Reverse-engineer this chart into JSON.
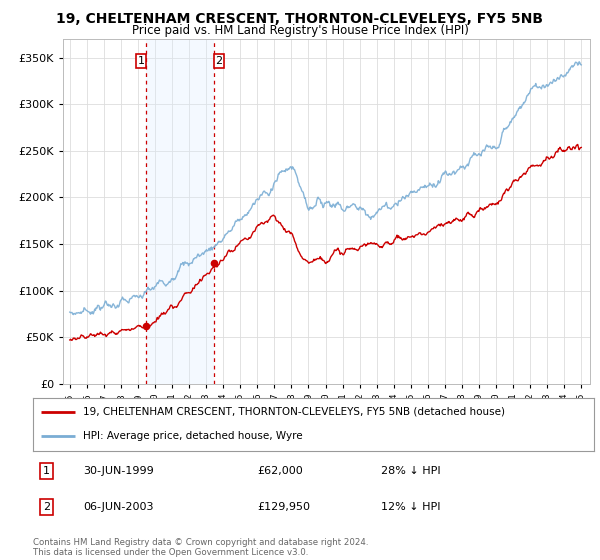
{
  "title": "19, CHELTENHAM CRESCENT, THORNTON-CLEVELEYS, FY5 5NB",
  "subtitle": "Price paid vs. HM Land Registry's House Price Index (HPI)",
  "legend_line1": "19, CHELTENHAM CRESCENT, THORNTON-CLEVELEYS, FY5 5NB (detached house)",
  "legend_line2": "HPI: Average price, detached house, Wyre",
  "annotation1_label": "1",
  "annotation1_date": "30-JUN-1999",
  "annotation1_price": "£62,000",
  "annotation1_hpi": "28% ↓ HPI",
  "annotation2_label": "2",
  "annotation2_date": "06-JUN-2003",
  "annotation2_price": "£129,950",
  "annotation2_hpi": "12% ↓ HPI",
  "footer": "Contains HM Land Registry data © Crown copyright and database right 2024.\nThis data is licensed under the Open Government Licence v3.0.",
  "price_line_color": "#cc0000",
  "hpi_line_color": "#7aadd4",
  "shade_color": "#ddeeff",
  "ylim": [
    0,
    370000
  ],
  "yticks": [
    0,
    50000,
    100000,
    150000,
    200000,
    250000,
    300000,
    350000
  ],
  "background_color": "#ffffff",
  "grid_color": "#dddddd",
  "t1_year": 1999.497,
  "t1_price": 62000,
  "t2_year": 2003.43,
  "t2_price": 129950
}
